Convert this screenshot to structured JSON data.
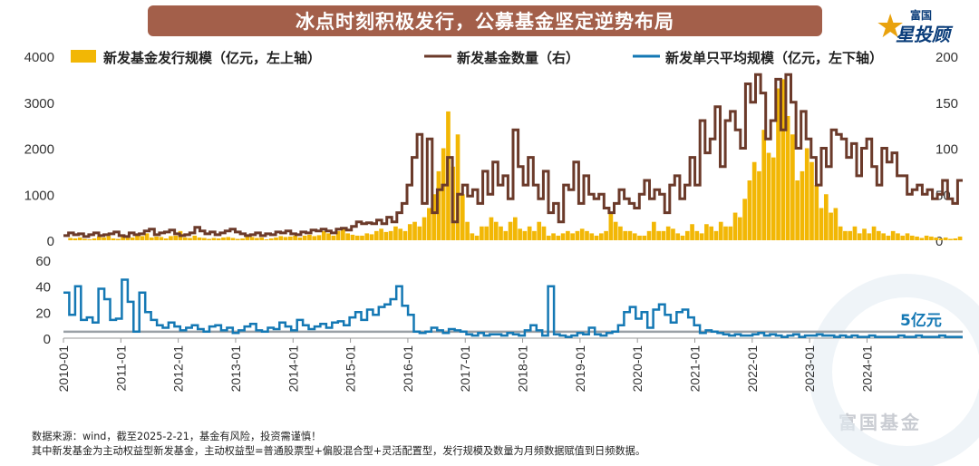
{
  "title": "冰点时刻积极发行，公募基金坚定逆势布局",
  "logo": {
    "top": "富国",
    "main": "星投顾"
  },
  "watermark": "富国基金",
  "annotation": "5亿元",
  "notes": [
    "数据来源：wind，截至2025-2-21，基金有风险，投资需谨慎！",
    "其中新发基金为主动权益型新发基金，主动权益型=普通股票型+偏股混合型+灵活配置型，发行规模及数量为月频数据赋值到日频数据。"
  ],
  "colors": {
    "scale": "#f2b705",
    "count": "#6b3a2a",
    "avg": "#1478b4",
    "ref": "#9aa0a6",
    "title_bg": "#a35f4a"
  },
  "chart_data": [
    {
      "type": "bar+line",
      "legend": [
        {
          "name": "新发基金发行规模（亿元，左上轴）",
          "color": "#f2b705",
          "kind": "bar"
        },
        {
          "name": "新发基金数量（右）",
          "color": "#6b3a2a",
          "kind": "line"
        },
        {
          "name": "新发单只平均规模（亿元，左下轴）",
          "color": "#1478b4",
          "kind": "line"
        }
      ],
      "x_start": "2010-01",
      "x_end": "2025-02",
      "y_left": {
        "ticks": [
          "0",
          "1000",
          "2000",
          "3000",
          "4000"
        ],
        "range": [
          0,
          4000
        ]
      },
      "y_right": {
        "ticks": [
          "0",
          "50",
          "100",
          "150",
          "200"
        ],
        "range": [
          0,
          200
        ]
      },
      "scale_values": [
        0,
        50,
        40,
        60,
        30,
        20,
        40,
        80,
        60,
        90,
        40,
        30,
        120,
        80,
        60,
        100,
        90,
        150,
        60,
        80,
        70,
        40,
        90,
        100,
        200,
        60,
        50,
        100,
        60,
        50,
        30,
        50,
        40,
        60,
        70,
        50,
        30,
        40,
        80,
        70,
        50,
        60,
        20,
        40,
        60,
        90,
        70,
        80,
        100,
        60,
        100,
        120,
        90,
        110,
        200,
        150,
        100,
        200,
        250,
        150,
        120,
        100,
        100,
        150,
        130,
        200,
        250,
        180,
        200,
        300,
        250,
        200,
        350,
        400,
        300,
        500,
        700,
        1000,
        1500,
        2000,
        2800,
        1600,
        2300,
        1000,
        400,
        150,
        100,
        300,
        300,
        500,
        400,
        300,
        200,
        400,
        500,
        250,
        200,
        300,
        200,
        400,
        300,
        100,
        150,
        100,
        150,
        200,
        150,
        200,
        250,
        200,
        150,
        100,
        150,
        200,
        600,
        400,
        300,
        200,
        200,
        150,
        100,
        100,
        200,
        400,
        200,
        200,
        300,
        250,
        150,
        100,
        200,
        350,
        200,
        150,
        350,
        300,
        200,
        400,
        300,
        300,
        600,
        500,
        900,
        1300,
        1700,
        1500,
        2400,
        1900,
        1800,
        3300,
        3500,
        2700,
        2300,
        1300,
        1500,
        2000,
        1700,
        1200,
        700,
        1000,
        600,
        700,
        300,
        200,
        200,
        300,
        150,
        250,
        150,
        300,
        200,
        150,
        100,
        200,
        150,
        100,
        150,
        100,
        80,
        50,
        100,
        80,
        60,
        40,
        60,
        30,
        40,
        80
      ],
      "count_values": [
        5,
        8,
        6,
        7,
        4,
        6,
        8,
        5,
        6,
        7,
        9,
        5,
        4,
        8,
        6,
        7,
        10,
        12,
        6,
        8,
        9,
        11,
        7,
        5,
        6,
        8,
        14,
        10,
        7,
        9,
        6,
        8,
        10,
        12,
        9,
        7,
        5,
        6,
        8,
        5,
        7,
        6,
        9,
        8,
        10,
        7,
        6,
        9,
        8,
        11,
        10,
        12,
        10,
        8,
        12,
        13,
        11,
        15,
        20,
        18,
        19,
        18,
        22,
        18,
        25,
        20,
        30,
        40,
        60,
        90,
        115,
        40,
        110,
        30,
        55,
        60,
        90,
        20,
        50,
        60,
        48,
        55,
        40,
        75,
        50,
        85,
        60,
        70,
        45,
        120,
        80,
        60,
        90,
        60,
        45,
        75,
        30,
        40,
        20,
        60,
        55,
        85,
        40,
        70,
        50,
        45,
        50,
        35,
        30,
        40,
        55,
        45,
        40,
        35,
        50,
        65,
        45,
        55,
        50,
        30,
        60,
        70,
        45,
        60,
        90,
        60,
        130,
        95,
        110,
        145,
        80,
        130,
        140,
        120,
        100,
        170,
        150,
        180,
        160,
        110,
        130,
        175,
        120,
        180,
        150,
        100,
        140,
        110,
        90,
        60,
        100,
        80,
        120,
        115,
        110,
        90,
        105,
        70,
        100,
        110,
        80,
        60,
        100,
        85,
        95,
        70,
        70,
        50,
        55,
        60,
        50,
        55,
        45,
        50,
        65,
        45,
        40,
        65
      ],
      "y_lower": {
        "ticks": [
          "0",
          "20",
          "40",
          "60"
        ],
        "range": [
          0,
          60
        ],
        "reference": 5
      },
      "avg_values": [
        35,
        18,
        40,
        14,
        16,
        12,
        38,
        30,
        14,
        15,
        45,
        28,
        5,
        35,
        20,
        14,
        10,
        8,
        12,
        9,
        6,
        8,
        10,
        7,
        5,
        9,
        10,
        6,
        8,
        4,
        6,
        9,
        11,
        6,
        5,
        8,
        7,
        12,
        9,
        6,
        14,
        10,
        7,
        9,
        11,
        8,
        12,
        13,
        10,
        16,
        20,
        14,
        22,
        18,
        24,
        26,
        30,
        40,
        25,
        18,
        5,
        4,
        5,
        8,
        6,
        4,
        7,
        6,
        5,
        3,
        2,
        4,
        2,
        3,
        3,
        2,
        4,
        3,
        2,
        6,
        10,
        6,
        2,
        40,
        3,
        2,
        1,
        2,
        4,
        3,
        8,
        3,
        2,
        4,
        5,
        10,
        20,
        24,
        15,
        20,
        8,
        22,
        26,
        18,
        12,
        20,
        22,
        16,
        10,
        4,
        6,
        5,
        4,
        3,
        2,
        3,
        2,
        2,
        3,
        4,
        2,
        3,
        2,
        1,
        2,
        3,
        1,
        2,
        2,
        3,
        2,
        2,
        1,
        2,
        1,
        2,
        1,
        1,
        2,
        1,
        1,
        1,
        1,
        2,
        1,
        1,
        2,
        1,
        1,
        1,
        2,
        1,
        1,
        1
      ],
      "x_ticks": [
        "2010-01",
        "2011-01",
        "2012-01",
        "2013-01",
        "2014-01",
        "2015-01",
        "2016-01",
        "2017-01",
        "2018-01",
        "2019-01",
        "2020-01",
        "2021-01",
        "2022-01",
        "2023-01",
        "2024-01"
      ]
    }
  ]
}
